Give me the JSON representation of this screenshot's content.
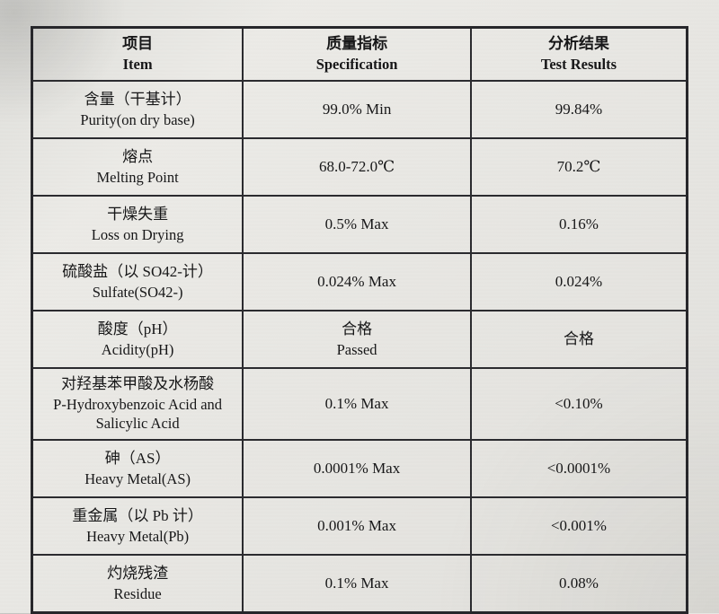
{
  "table": {
    "headers": [
      {
        "zh": "项目",
        "en": "Item"
      },
      {
        "zh": "质量指标",
        "en": "Specification"
      },
      {
        "zh": "分析结果",
        "en": "Test Results"
      }
    ],
    "rows": [
      {
        "item_zh": "含量（干基计）",
        "item_en": "Purity(on dry base)",
        "spec": "99.0% Min",
        "result": "99.84%"
      },
      {
        "item_zh": "熔点",
        "item_en": "Melting Point",
        "spec": "68.0-72.0℃",
        "result": "70.2℃"
      },
      {
        "item_zh": "干燥失重",
        "item_en": "Loss on Drying",
        "spec": "0.5% Max",
        "result": "0.16%"
      },
      {
        "item_zh": "硫酸盐（以 SO42-计）",
        "item_en": "Sulfate(SO42-)",
        "spec": "0.024% Max",
        "result": "0.024%"
      },
      {
        "item_zh": "酸度（pH）",
        "item_en": "Acidity(pH)",
        "spec": "合格",
        "spec_line2": "Passed",
        "result": "合格"
      },
      {
        "item_zh": "对羟基苯甲酸及水杨酸",
        "item_en": "P-Hydroxybenzoic Acid and Salicylic Acid",
        "spec": "0.1% Max",
        "result": "<0.10%"
      },
      {
        "item_zh": "砷（AS）",
        "item_en": "Heavy Metal(AS)",
        "spec": "0.0001% Max",
        "result": "<0.0001%"
      },
      {
        "item_zh": "重金属（以 Pb 计）",
        "item_en": "Heavy Metal(Pb)",
        "spec": "0.001% Max",
        "result": "<0.001%"
      },
      {
        "item_zh": "灼烧残渣",
        "item_en": "Residue",
        "spec": "0.1% Max",
        "result": "0.08%"
      }
    ]
  }
}
